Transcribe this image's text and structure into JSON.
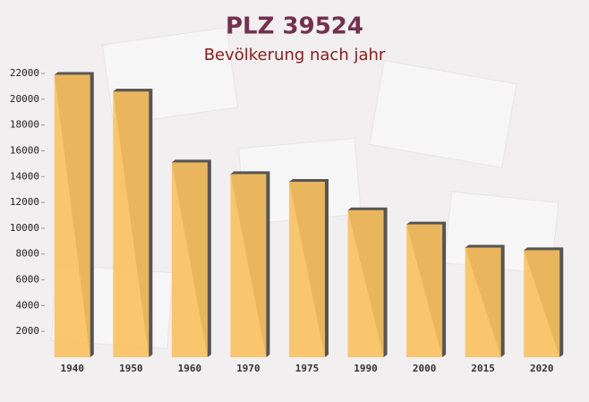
{
  "chart_data": {
    "type": "bar",
    "title": "PLZ 39524",
    "subtitle": "Bevölkerung nach jahr",
    "categories": [
      "1940",
      "1950",
      "1960",
      "1970",
      "1975",
      "1990",
      "2000",
      "2015",
      "2020"
    ],
    "values": [
      21900,
      20600,
      15100,
      14200,
      13600,
      11400,
      10300,
      8500,
      8300
    ],
    "color": "#f9c15f",
    "ylim": [
      0,
      22000
    ],
    "yticks": [
      2000,
      4000,
      6000,
      8000,
      10000,
      12000,
      14000,
      16000,
      18000,
      20000,
      22000
    ]
  }
}
